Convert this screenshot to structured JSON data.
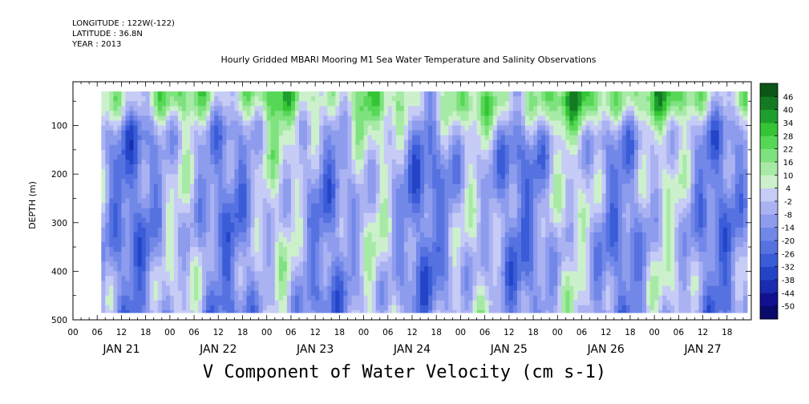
{
  "header": {
    "longitude": "LONGITUDE : 122W(-122)",
    "latitude": "LATITUDE : 36.8N",
    "year": "YEAR : 2013"
  },
  "chart_data": {
    "type": "heatmap",
    "title": "Hourly Gridded MBARI Mooring M1 Sea Water Temperature and Salinity Observations",
    "xlabel": "V Component of Water Velocity (cm s-1)",
    "ylabel": "DEPTH (m)",
    "ylim": [
      500,
      10
    ],
    "y_reversed": true,
    "y_ticks": [
      100,
      200,
      300,
      400,
      500
    ],
    "x_range_hours": [
      0,
      168
    ],
    "x_hour_ticks": [
      "00",
      "06",
      "12",
      "18",
      "00",
      "06",
      "12",
      "18",
      "00",
      "06",
      "12",
      "18",
      "00",
      "06",
      "12",
      "18",
      "00",
      "06",
      "12",
      "18",
      "00",
      "06",
      "12",
      "18",
      "00",
      "06",
      "12",
      "18"
    ],
    "x_day_labels": [
      "JAN 21",
      "JAN 22",
      "JAN 23",
      "JAN 24",
      "JAN 25",
      "JAN 26",
      "JAN 27"
    ],
    "data_extent_hours": [
      7,
      167
    ],
    "data_extent_depth": [
      30,
      485
    ],
    "colorbar": {
      "levels": [
        -50,
        -44,
        -38,
        -32,
        -26,
        -20,
        -14,
        -8,
        -2,
        4,
        10,
        16,
        22,
        28,
        34,
        40,
        46
      ],
      "colors": [
        "#0a0a6a",
        "#111190",
        "#1a2bb0",
        "#2444c8",
        "#3a5cd8",
        "#5672e0",
        "#7288e8",
        "#8e9cee",
        "#aab2f2",
        "#c6ccf6",
        "#ccf0cc",
        "#a6eaa6",
        "#7ee27e",
        "#56d856",
        "#34c434",
        "#1e9e2e",
        "#137a22",
        "#0b5516"
      ]
    },
    "grid": false
  }
}
